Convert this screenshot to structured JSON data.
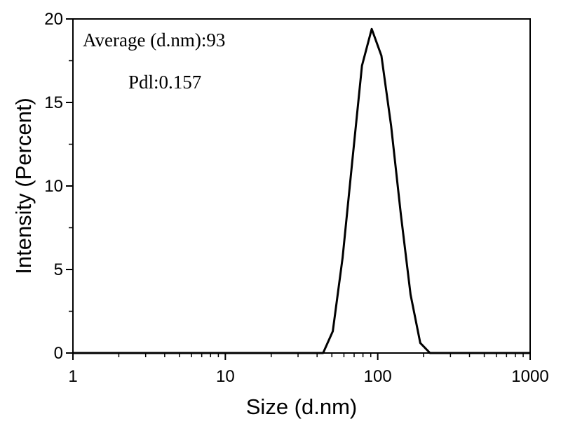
{
  "chart_data": {
    "type": "line",
    "xlabel": "Size (d.nm)",
    "ylabel": "Intensity (Percent)",
    "x_scale": "log",
    "xlim": [
      1,
      1000
    ],
    "ylim": [
      0,
      20
    ],
    "x_ticks": [
      1,
      10,
      100,
      1000
    ],
    "x_tick_labels": [
      "1",
      "10",
      "100",
      "1000"
    ],
    "y_ticks": [
      0,
      5,
      10,
      15,
      20
    ],
    "y_tick_labels": [
      "0",
      "5",
      "10",
      "15",
      "20"
    ],
    "grid": false,
    "line_color": "#000000",
    "series": [
      {
        "x": [
          1,
          43.8,
          50.7,
          58.8,
          68.1,
          78.8,
          91.3,
          105.7,
          122.4,
          141.8,
          164.2,
          190.1,
          220.2,
          1000
        ],
        "y": [
          0,
          0,
          1.3,
          5.7,
          11.5,
          17.2,
          19.4,
          17.8,
          13.6,
          8.3,
          3.5,
          0.6,
          0,
          0
        ]
      }
    ],
    "annotations": [
      "Average (d.nm):93",
      "Pdl:0.157"
    ]
  }
}
